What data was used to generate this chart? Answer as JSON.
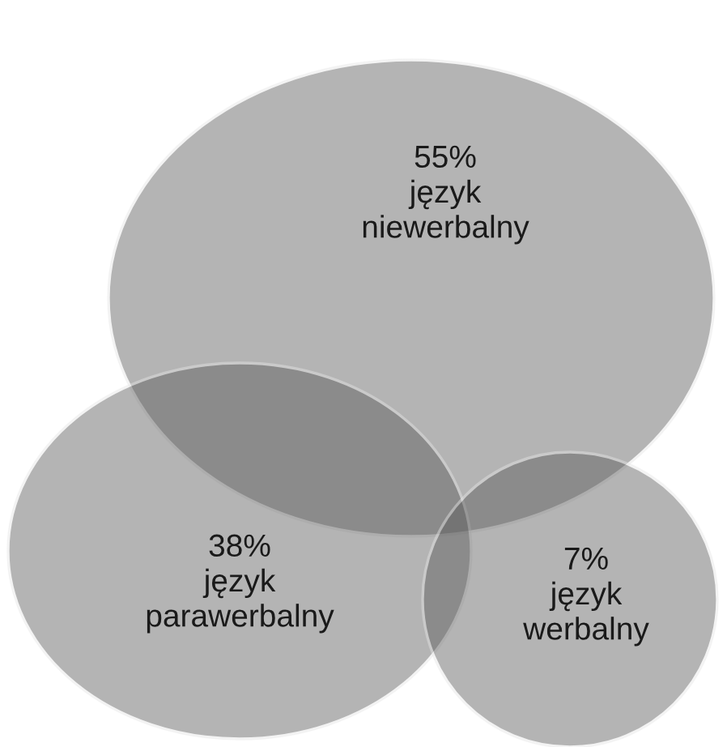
{
  "chart_data": {
    "type": "other",
    "categories": [
      "język\nniewerbalny",
      "język\nparawerbalny",
      "język\nwerbalny"
    ],
    "values": [
      55,
      38,
      7
    ],
    "value_labels": [
      "55%",
      "38%",
      "7%"
    ],
    "colors": [
      "#5a5a5a",
      "#5a5a5a",
      "#5a5a5a"
    ]
  }
}
